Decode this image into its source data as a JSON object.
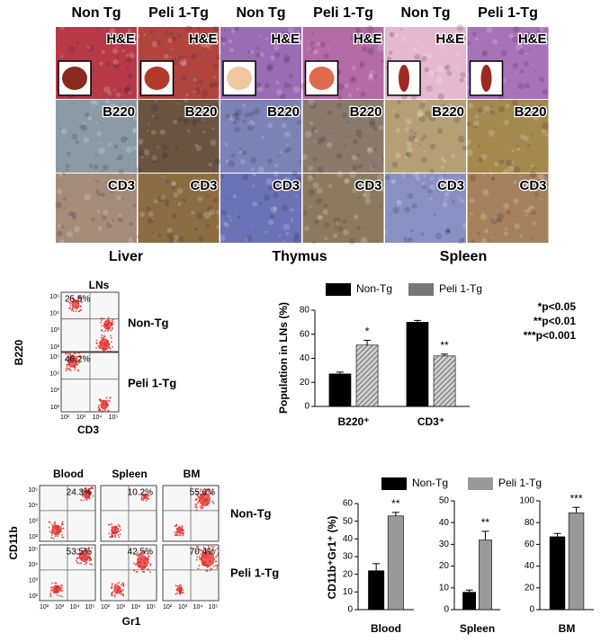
{
  "histology": {
    "column_headers": [
      "Non Tg",
      "Peli 1-Tg",
      "Non Tg",
      "Peli 1-Tg",
      "Non Tg",
      "Peli 1-Tg"
    ],
    "row_labels": [
      "H&E",
      "B220",
      "CD3"
    ],
    "organs": [
      "Liver",
      "Thymus",
      "Spleen"
    ]
  },
  "lns_flow": {
    "title": "LNs",
    "rows": [
      "Non-Tg",
      "Peli 1-Tg"
    ],
    "percentages": [
      "25.5%",
      "46.2%"
    ],
    "y_label": "B220",
    "x_label": "CD3",
    "y_axis_ticks": [
      "10⁵",
      "10⁴",
      "10³",
      "10²"
    ],
    "x_axis_ticks": [
      "10²",
      "10³",
      "10⁴",
      "10⁵"
    ]
  },
  "stats_note": [
    "*p<0.05",
    "**p<0.01",
    "***p<0.001"
  ],
  "myeloid_flow": {
    "columns": [
      "Blood",
      "Spleen",
      "BM"
    ],
    "rows": [
      "Non-Tg",
      "Peli 1-Tg"
    ],
    "percentages": [
      [
        "24.3%",
        "10.2%",
        "55.6%"
      ],
      [
        "53.5%",
        "42.5%",
        "70.4%"
      ]
    ],
    "y_label": "CD11b",
    "x_label": "Gr1",
    "y_axis_ticks": [
      "10⁵",
      "10⁴",
      "10³",
      "10²"
    ],
    "x_axis_ticks": [
      "10²",
      "10³",
      "10⁴",
      "10⁵"
    ]
  },
  "chart_data": [
    {
      "type": "bar",
      "y_label": "Population in LNs (%)",
      "categories": [
        "B220⁺",
        "CD3⁺"
      ],
      "series": [
        {
          "name": "Non-Tg",
          "color": "#000000",
          "values": [
            27,
            70
          ],
          "errors": [
            1.5,
            1.5
          ]
        },
        {
          "name": "Peli 1-Tg",
          "color": "#777777",
          "pattern": "hatch",
          "values": [
            51,
            42
          ],
          "errors": [
            4,
            1.5
          ],
          "labels": [
            "*",
            "**"
          ]
        }
      ],
      "ylim": [
        0,
        80
      ],
      "yticks": [
        0,
        20,
        40,
        60,
        80
      ]
    },
    {
      "type": "bar",
      "y_label": "CD11b⁺Gr1⁺ (%)",
      "categories": [
        "Blood"
      ],
      "series": [
        {
          "name": "Non-Tg",
          "color": "#000000",
          "values": [
            22
          ],
          "errors": [
            4
          ]
        },
        {
          "name": "Peli 1-Tg",
          "color": "#999999",
          "values": [
            53
          ],
          "errors": [
            2
          ],
          "labels": [
            "**"
          ]
        }
      ],
      "ylim": [
        0,
        60
      ],
      "yticks": [
        0,
        10,
        20,
        30,
        40,
        50,
        60
      ]
    },
    {
      "type": "bar",
      "categories": [
        "Spleen"
      ],
      "series": [
        {
          "name": "Non-Tg",
          "color": "#000000",
          "values": [
            8
          ],
          "errors": [
            1
          ]
        },
        {
          "name": "Peli 1-Tg",
          "color": "#999999",
          "values": [
            32
          ],
          "errors": [
            4
          ],
          "labels": [
            "**"
          ]
        }
      ],
      "ylim": [
        0,
        50
      ],
      "yticks": [
        0,
        10,
        20,
        30,
        40,
        50
      ]
    },
    {
      "type": "bar",
      "categories": [
        "BM"
      ],
      "series": [
        {
          "name": "Non-Tg",
          "color": "#000000",
          "values": [
            67
          ],
          "errors": [
            3
          ]
        },
        {
          "name": "Peli 1-Tg",
          "color": "#999999",
          "values": [
            89
          ],
          "errors": [
            5
          ],
          "labels": [
            "***"
          ]
        }
      ],
      "ylim": [
        0,
        100
      ],
      "yticks": [
        0,
        20,
        40,
        60,
        80,
        100
      ]
    }
  ]
}
